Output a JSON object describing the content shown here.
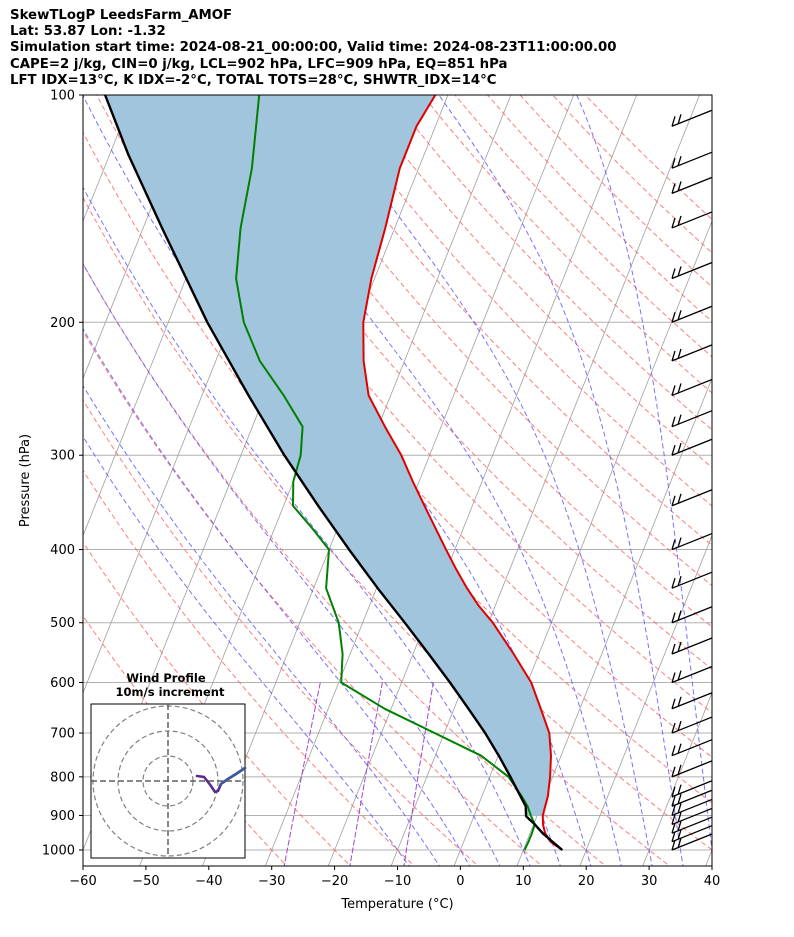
{
  "header": {
    "line1": "SkewTLogP LeedsFarm_AMOF",
    "line2": "Lat: 53.87   Lon: -1.32",
    "line3": "Simulation start time: 2024-08-21_00:00:00, Valid time: 2024-08-23T11:00:00.00",
    "line4": "CAPE=2 j/kg, CIN=0 j/kg, LCL=902 hPa, LFC=909 hPa, EQ=851 hPa",
    "line5": "LFT IDX=13°C, K IDX=-2°C, TOTAL TOTS=28°C, SHWTR_IDX=14°C"
  },
  "chart_data": [
    {
      "type": "skew-t log-p",
      "xlabel": "Temperature (°C)",
      "ylabel": "Pressure (hPa)",
      "xlim": [
        -60,
        40
      ],
      "ylim": [
        1050,
        100
      ],
      "y_scale": "log",
      "x_ticks": [
        "−60",
        "−50",
        "−40",
        "−30",
        "−20",
        "−10",
        "0",
        "10",
        "20",
        "30",
        "40"
      ],
      "y_ticks": [
        "100",
        "200",
        "300",
        "400",
        "500",
        "600",
        "700",
        "800",
        "900",
        "1000"
      ],
      "colors": {
        "temperature": "#e00000",
        "dewpoint": "#008000",
        "parcel": "#000000",
        "cape_fill": "#a2c5de",
        "dry_adiabats": "#ff6666",
        "moist_adiabats": "#5a5aff",
        "mixing_ratio": "#9933cc",
        "isotherms": "#a0a0a0"
      },
      "series": [
        {
          "key": "temperature",
          "points": [
            [
              1000,
              16.2
            ],
            [
              975,
              13.8
            ],
            [
              950,
              12.4
            ],
            [
              925,
              11.5
            ],
            [
              900,
              10.9
            ],
            [
              875,
              10.7
            ],
            [
              850,
              10.5
            ],
            [
              800,
              9.6
            ],
            [
              750,
              8.4
            ],
            [
              700,
              6.7
            ],
            [
              650,
              3.8
            ],
            [
              600,
              0.6
            ],
            [
              550,
              -4.0
            ],
            [
              500,
              -9.3
            ],
            [
              475,
              -12.6
            ],
            [
              450,
              -15.6
            ],
            [
              425,
              -18.5
            ],
            [
              400,
              -21.4
            ],
            [
              375,
              -24.4
            ],
            [
              350,
              -27.6
            ],
            [
              325,
              -31.0
            ],
            [
              300,
              -34.5
            ],
            [
              275,
              -38.9
            ],
            [
              250,
              -43.5
            ],
            [
              225,
              -46.5
            ],
            [
              200,
              -49.0
            ],
            [
              175,
              -50.5
            ],
            [
              150,
              -51.5
            ],
            [
              125,
              -53.0
            ],
            [
              110,
              -53.0
            ],
            [
              100,
              -52.0
            ]
          ]
        },
        {
          "key": "dewpoint",
          "points": [
            [
              1000,
              10.2
            ],
            [
              975,
              10.3
            ],
            [
              950,
              10.3
            ],
            [
              925,
              10.2
            ],
            [
              900,
              9.0
            ],
            [
              875,
              7.9
            ],
            [
              850,
              6.4
            ],
            [
              800,
              3.0
            ],
            [
              750,
              -2.7
            ],
            [
              700,
              -11.5
            ],
            [
              650,
              -21.0
            ],
            [
              600,
              -29.6
            ],
            [
              550,
              -31.2
            ],
            [
              500,
              -33.8
            ],
            [
              450,
              -38.0
            ],
            [
              400,
              -40.0
            ],
            [
              375,
              -44.0
            ],
            [
              350,
              -48.5
            ],
            [
              325,
              -50.0
            ],
            [
              300,
              -50.5
            ],
            [
              275,
              -52.0
            ],
            [
              250,
              -57.0
            ],
            [
              225,
              -63.0
            ],
            [
              200,
              -68.0
            ],
            [
              175,
              -72.0
            ],
            [
              150,
              -74.5
            ],
            [
              125,
              -76.5
            ],
            [
              100,
              -80.0
            ]
          ]
        },
        {
          "key": "parcel",
          "points": [
            [
              1000,
              16.2
            ],
            [
              975,
              14.1
            ],
            [
              950,
              12.0
            ],
            [
              925,
              10.2
            ],
            [
              902,
              8.3
            ],
            [
              875,
              7.6
            ],
            [
              850,
              6.2
            ],
            [
              800,
              3.3
            ],
            [
              750,
              0.1
            ],
            [
              700,
              -3.5
            ],
            [
              650,
              -7.7
            ],
            [
              600,
              -12.3
            ],
            [
              550,
              -17.5
            ],
            [
              500,
              -23.3
            ],
            [
              450,
              -29.8
            ],
            [
              400,
              -36.8
            ],
            [
              350,
              -44.5
            ],
            [
              300,
              -53.1
            ],
            [
              250,
              -62.6
            ],
            [
              200,
              -73.8
            ],
            [
              150,
              -87.0
            ],
            [
              120,
              -97.0
            ],
            [
              100,
              -104.5
            ]
          ]
        }
      ],
      "wind_barbs": {
        "side": "right",
        "pressures": [
          1000,
          975,
          950,
          925,
          900,
          875,
          850,
          800,
          750,
          700,
          650,
          600,
          550,
          500,
          450,
          400,
          350,
          300,
          275,
          250,
          225,
          200,
          175,
          150,
          135,
          125,
          110
        ]
      },
      "inset": {
        "title_line1": "Wind Profile",
        "title_line2": "10m/s increment"
      }
    }
  ]
}
